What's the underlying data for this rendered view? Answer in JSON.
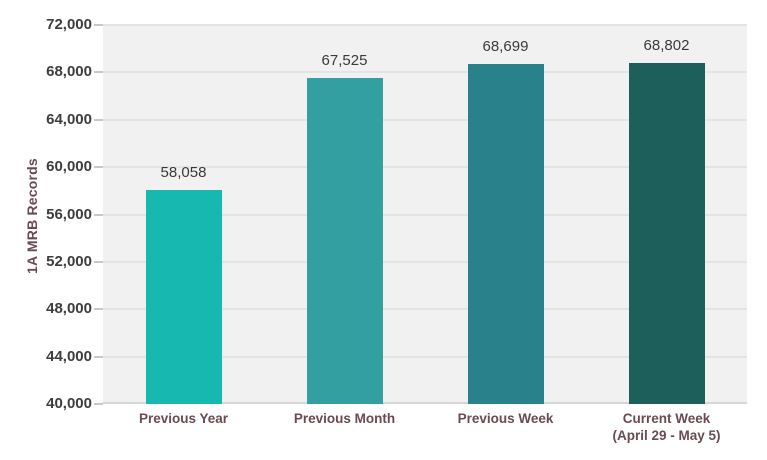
{
  "page": {
    "background": "#ffffff"
  },
  "chart_data": {
    "type": "bar",
    "title": "",
    "xlabel": "",
    "ylabel": "1A MRB Records",
    "categories": [
      {
        "slug": "previous-year",
        "label": "Previous Year",
        "sublabel": ""
      },
      {
        "slug": "previous-month",
        "label": "Previous Month",
        "sublabel": ""
      },
      {
        "slug": "previous-week",
        "label": "Previous Week",
        "sublabel": ""
      },
      {
        "slug": "current-week",
        "label": "Current Week",
        "sublabel": "(April 29 - May 5)"
      }
    ],
    "values": [
      58058,
      67525,
      68699,
      68802
    ],
    "value_labels": [
      "58,058",
      "67,525",
      "68,699",
      "68,802"
    ],
    "bar_colors": [
      "#17b8b0",
      "#349fa0",
      "#29828b",
      "#1d5f5b"
    ],
    "ylim": [
      40000,
      72000
    ],
    "ytick_step": 4000,
    "yticks": [
      {
        "value": 40000,
        "label": "40,000"
      },
      {
        "value": 44000,
        "label": "44,000"
      },
      {
        "value": 48000,
        "label": "48,000"
      },
      {
        "value": 52000,
        "label": "52,000"
      },
      {
        "value": 56000,
        "label": "56,000"
      },
      {
        "value": 60000,
        "label": "60,000"
      },
      {
        "value": 64000,
        "label": "64,000"
      },
      {
        "value": 68000,
        "label": "68,000"
      },
      {
        "value": 72000,
        "label": "72,000"
      }
    ],
    "grid": "horizontal",
    "legend_position": "none",
    "colors": {
      "plot_background": "#f1f1f2",
      "gridline": "#e4e4e6",
      "axis_line": "#d6d6d8",
      "tick_text": "#3d3d3d",
      "value_text": "#3a3a3a",
      "category_text": "#6b4a51"
    }
  }
}
